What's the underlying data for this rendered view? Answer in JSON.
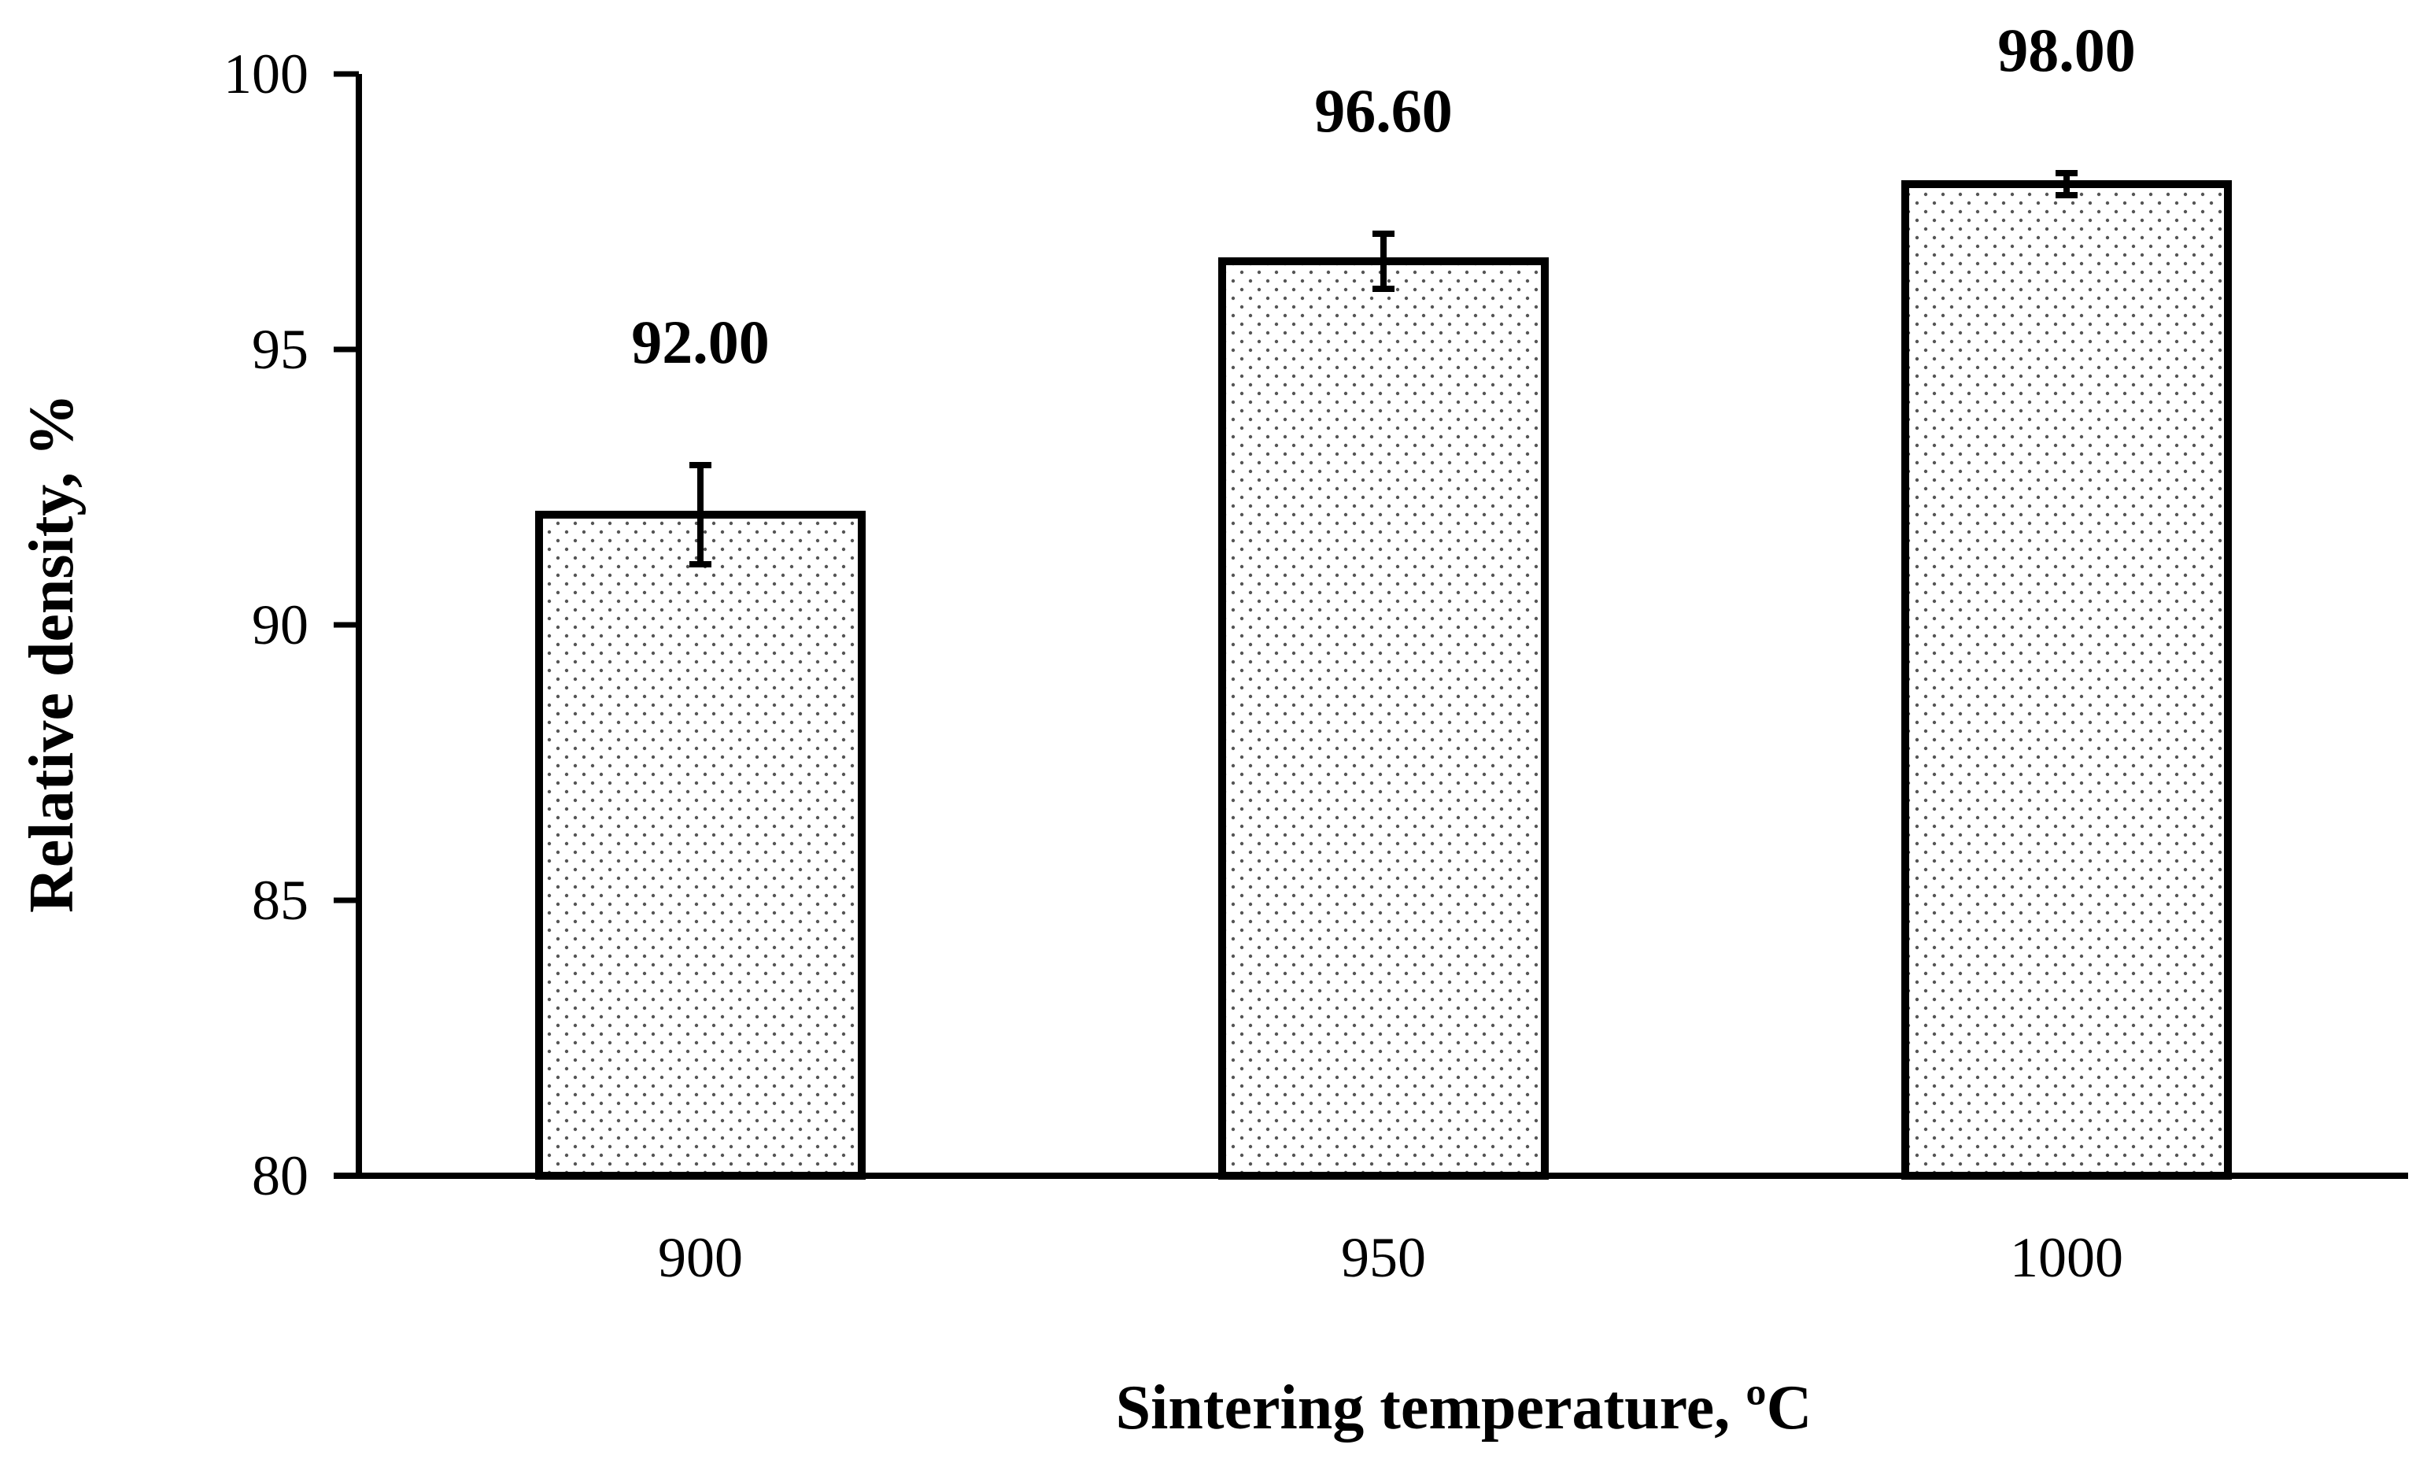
{
  "chart_data": {
    "type": "bar",
    "title": "",
    "xlabel": "Sintering temperature, ºC",
    "ylabel": "Relative density, %",
    "categories": [
      "900",
      "950",
      "1000"
    ],
    "values": [
      92.0,
      96.6,
      98.0
    ],
    "data_labels": [
      "92.00",
      "96.60",
      "98.00"
    ],
    "error_bars": [
      0.9,
      0.5,
      0.2
    ],
    "ylim": [
      80,
      100
    ],
    "yticks": [
      80,
      85,
      90,
      95,
      100
    ],
    "ytick_labels": [
      "80",
      "85",
      "90",
      "95",
      "100"
    ],
    "grid": false,
    "legend": "none",
    "bar_pattern": "dotted",
    "colors": {
      "bar_fill": "#ffffff",
      "bar_dots": "#555555",
      "bar_edge": "#000000",
      "axis": "#000000"
    }
  }
}
